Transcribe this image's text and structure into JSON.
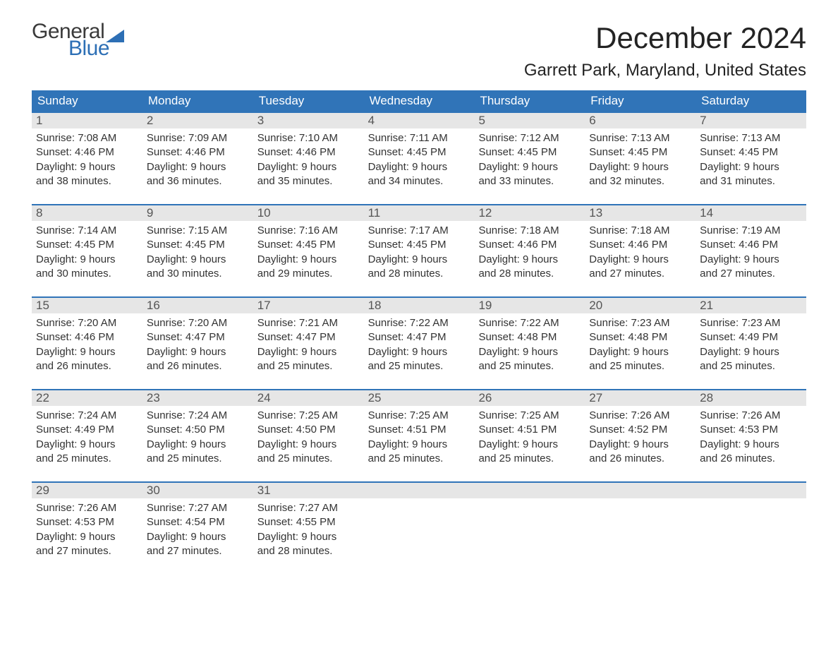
{
  "logo": {
    "word1": "General",
    "word2": "Blue",
    "flag_color": "#2d6fb5",
    "text_color": "#3a3a3a"
  },
  "title": "December 2024",
  "location": "Garrett Park, Maryland, United States",
  "colors": {
    "header_bg": "#3074b8",
    "header_text": "#ffffff",
    "daynum_bg": "#e6e6e6",
    "week_border": "#3074b8",
    "body_text": "#333333"
  },
  "day_headers": [
    "Sunday",
    "Monday",
    "Tuesday",
    "Wednesday",
    "Thursday",
    "Friday",
    "Saturday"
  ],
  "weeks": [
    [
      {
        "n": "1",
        "sr": "Sunrise: 7:08 AM",
        "ss": "Sunset: 4:46 PM",
        "d1": "Daylight: 9 hours",
        "d2": "and 38 minutes."
      },
      {
        "n": "2",
        "sr": "Sunrise: 7:09 AM",
        "ss": "Sunset: 4:46 PM",
        "d1": "Daylight: 9 hours",
        "d2": "and 36 minutes."
      },
      {
        "n": "3",
        "sr": "Sunrise: 7:10 AM",
        "ss": "Sunset: 4:46 PM",
        "d1": "Daylight: 9 hours",
        "d2": "and 35 minutes."
      },
      {
        "n": "4",
        "sr": "Sunrise: 7:11 AM",
        "ss": "Sunset: 4:45 PM",
        "d1": "Daylight: 9 hours",
        "d2": "and 34 minutes."
      },
      {
        "n": "5",
        "sr": "Sunrise: 7:12 AM",
        "ss": "Sunset: 4:45 PM",
        "d1": "Daylight: 9 hours",
        "d2": "and 33 minutes."
      },
      {
        "n": "6",
        "sr": "Sunrise: 7:13 AM",
        "ss": "Sunset: 4:45 PM",
        "d1": "Daylight: 9 hours",
        "d2": "and 32 minutes."
      },
      {
        "n": "7",
        "sr": "Sunrise: 7:13 AM",
        "ss": "Sunset: 4:45 PM",
        "d1": "Daylight: 9 hours",
        "d2": "and 31 minutes."
      }
    ],
    [
      {
        "n": "8",
        "sr": "Sunrise: 7:14 AM",
        "ss": "Sunset: 4:45 PM",
        "d1": "Daylight: 9 hours",
        "d2": "and 30 minutes."
      },
      {
        "n": "9",
        "sr": "Sunrise: 7:15 AM",
        "ss": "Sunset: 4:45 PM",
        "d1": "Daylight: 9 hours",
        "d2": "and 30 minutes."
      },
      {
        "n": "10",
        "sr": "Sunrise: 7:16 AM",
        "ss": "Sunset: 4:45 PM",
        "d1": "Daylight: 9 hours",
        "d2": "and 29 minutes."
      },
      {
        "n": "11",
        "sr": "Sunrise: 7:17 AM",
        "ss": "Sunset: 4:45 PM",
        "d1": "Daylight: 9 hours",
        "d2": "and 28 minutes."
      },
      {
        "n": "12",
        "sr": "Sunrise: 7:18 AM",
        "ss": "Sunset: 4:46 PM",
        "d1": "Daylight: 9 hours",
        "d2": "and 28 minutes."
      },
      {
        "n": "13",
        "sr": "Sunrise: 7:18 AM",
        "ss": "Sunset: 4:46 PM",
        "d1": "Daylight: 9 hours",
        "d2": "and 27 minutes."
      },
      {
        "n": "14",
        "sr": "Sunrise: 7:19 AM",
        "ss": "Sunset: 4:46 PM",
        "d1": "Daylight: 9 hours",
        "d2": "and 27 minutes."
      }
    ],
    [
      {
        "n": "15",
        "sr": "Sunrise: 7:20 AM",
        "ss": "Sunset: 4:46 PM",
        "d1": "Daylight: 9 hours",
        "d2": "and 26 minutes."
      },
      {
        "n": "16",
        "sr": "Sunrise: 7:20 AM",
        "ss": "Sunset: 4:47 PM",
        "d1": "Daylight: 9 hours",
        "d2": "and 26 minutes."
      },
      {
        "n": "17",
        "sr": "Sunrise: 7:21 AM",
        "ss": "Sunset: 4:47 PM",
        "d1": "Daylight: 9 hours",
        "d2": "and 25 minutes."
      },
      {
        "n": "18",
        "sr": "Sunrise: 7:22 AM",
        "ss": "Sunset: 4:47 PM",
        "d1": "Daylight: 9 hours",
        "d2": "and 25 minutes."
      },
      {
        "n": "19",
        "sr": "Sunrise: 7:22 AM",
        "ss": "Sunset: 4:48 PM",
        "d1": "Daylight: 9 hours",
        "d2": "and 25 minutes."
      },
      {
        "n": "20",
        "sr": "Sunrise: 7:23 AM",
        "ss": "Sunset: 4:48 PM",
        "d1": "Daylight: 9 hours",
        "d2": "and 25 minutes."
      },
      {
        "n": "21",
        "sr": "Sunrise: 7:23 AM",
        "ss": "Sunset: 4:49 PM",
        "d1": "Daylight: 9 hours",
        "d2": "and 25 minutes."
      }
    ],
    [
      {
        "n": "22",
        "sr": "Sunrise: 7:24 AM",
        "ss": "Sunset: 4:49 PM",
        "d1": "Daylight: 9 hours",
        "d2": "and 25 minutes."
      },
      {
        "n": "23",
        "sr": "Sunrise: 7:24 AM",
        "ss": "Sunset: 4:50 PM",
        "d1": "Daylight: 9 hours",
        "d2": "and 25 minutes."
      },
      {
        "n": "24",
        "sr": "Sunrise: 7:25 AM",
        "ss": "Sunset: 4:50 PM",
        "d1": "Daylight: 9 hours",
        "d2": "and 25 minutes."
      },
      {
        "n": "25",
        "sr": "Sunrise: 7:25 AM",
        "ss": "Sunset: 4:51 PM",
        "d1": "Daylight: 9 hours",
        "d2": "and 25 minutes."
      },
      {
        "n": "26",
        "sr": "Sunrise: 7:25 AM",
        "ss": "Sunset: 4:51 PM",
        "d1": "Daylight: 9 hours",
        "d2": "and 25 minutes."
      },
      {
        "n": "27",
        "sr": "Sunrise: 7:26 AM",
        "ss": "Sunset: 4:52 PM",
        "d1": "Daylight: 9 hours",
        "d2": "and 26 minutes."
      },
      {
        "n": "28",
        "sr": "Sunrise: 7:26 AM",
        "ss": "Sunset: 4:53 PM",
        "d1": "Daylight: 9 hours",
        "d2": "and 26 minutes."
      }
    ],
    [
      {
        "n": "29",
        "sr": "Sunrise: 7:26 AM",
        "ss": "Sunset: 4:53 PM",
        "d1": "Daylight: 9 hours",
        "d2": "and 27 minutes."
      },
      {
        "n": "30",
        "sr": "Sunrise: 7:27 AM",
        "ss": "Sunset: 4:54 PM",
        "d1": "Daylight: 9 hours",
        "d2": "and 27 minutes."
      },
      {
        "n": "31",
        "sr": "Sunrise: 7:27 AM",
        "ss": "Sunset: 4:55 PM",
        "d1": "Daylight: 9 hours",
        "d2": "and 28 minutes."
      },
      null,
      null,
      null,
      null
    ]
  ]
}
